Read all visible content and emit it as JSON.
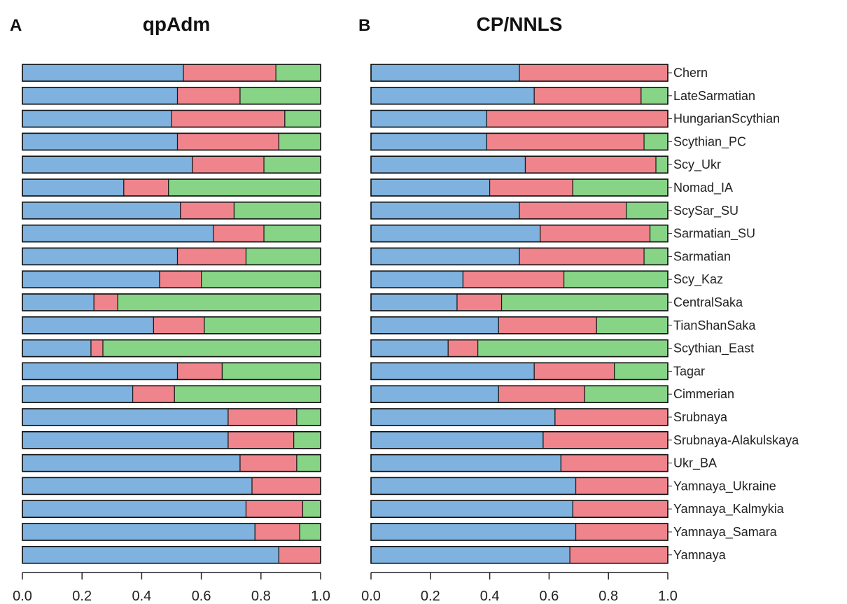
{
  "chart_data": [
    {
      "type": "bar",
      "stacked": true,
      "orientation": "horizontal",
      "panel": "A",
      "title": "qpAdm",
      "xlim": [
        0,
        1
      ],
      "xticks": [
        "0.0",
        "0.2",
        "0.4",
        "0.6",
        "0.8",
        "1.0"
      ],
      "colors": [
        "#7fb2de",
        "#f0848c",
        "#87d487"
      ],
      "categories": [
        "Chern",
        "LateSarmatian",
        "HungarianScythian",
        "Scythian_PC",
        "Scy_Ukr",
        "Nomad_IA",
        "ScySar_SU",
        "Sarmatian_SU",
        "Sarmatian",
        "Scy_Kaz",
        "CentralSaka",
        "TianShanSaka",
        "Scythian_East",
        "Tagar",
        "Cimmerian",
        "Srubnaya",
        "Srubnaya-Alakulskaya",
        "Ukr_BA",
        "Yamnaya_Ukraine",
        "Yamnaya_Kalmykia",
        "Yamnaya_Samara",
        "Yamnaya"
      ],
      "series": [
        {
          "values": [
            0.54,
            0.52,
            0.5,
            0.52,
            0.57,
            0.34,
            0.53,
            0.64,
            0.52,
            0.46,
            0.24,
            0.44,
            0.23,
            0.52,
            0.37,
            0.69,
            0.69,
            0.73,
            0.77,
            0.75,
            0.78,
            0.86
          ]
        },
        {
          "values": [
            0.31,
            0.21,
            0.38,
            0.34,
            0.24,
            0.15,
            0.18,
            0.17,
            0.23,
            0.14,
            0.08,
            0.17,
            0.04,
            0.15,
            0.14,
            0.23,
            0.22,
            0.19,
            0.23,
            0.19,
            0.15,
            0.14
          ]
        },
        {
          "values": [
            0.15,
            0.27,
            0.12,
            0.14,
            0.19,
            0.51,
            0.29,
            0.19,
            0.25,
            0.4,
            0.68,
            0.39,
            0.73,
            0.33,
            0.49,
            0.08,
            0.09,
            0.08,
            0.0,
            0.06,
            0.07,
            0.0
          ]
        }
      ]
    },
    {
      "type": "bar",
      "stacked": true,
      "orientation": "horizontal",
      "panel": "B",
      "title": "CP/NNLS",
      "xlim": [
        0,
        1
      ],
      "xticks": [
        "0.0",
        "0.2",
        "0.4",
        "0.6",
        "0.8",
        "1.0"
      ],
      "colors": [
        "#7fb2de",
        "#f0848c",
        "#87d487"
      ],
      "categories": [
        "Chern",
        "LateSarmatian",
        "HungarianScythian",
        "Scythian_PC",
        "Scy_Ukr",
        "Nomad_IA",
        "ScySar_SU",
        "Sarmatian_SU",
        "Sarmatian",
        "Scy_Kaz",
        "CentralSaka",
        "TianShanSaka",
        "Scythian_East",
        "Tagar",
        "Cimmerian",
        "Srubnaya",
        "Srubnaya-Alakulskaya",
        "Ukr_BA",
        "Yamnaya_Ukraine",
        "Yamnaya_Kalmykia",
        "Yamnaya_Samara",
        "Yamnaya"
      ],
      "series": [
        {
          "values": [
            0.5,
            0.55,
            0.39,
            0.39,
            0.52,
            0.4,
            0.5,
            0.57,
            0.5,
            0.31,
            0.29,
            0.43,
            0.26,
            0.55,
            0.43,
            0.62,
            0.58,
            0.64,
            0.69,
            0.68,
            0.69,
            0.67
          ]
        },
        {
          "values": [
            0.5,
            0.36,
            0.61,
            0.53,
            0.44,
            0.28,
            0.36,
            0.37,
            0.42,
            0.34,
            0.15,
            0.33,
            0.1,
            0.27,
            0.29,
            0.38,
            0.42,
            0.36,
            0.31,
            0.32,
            0.31,
            0.33
          ]
        },
        {
          "values": [
            0.0,
            0.09,
            0.0,
            0.08,
            0.04,
            0.32,
            0.14,
            0.06,
            0.08,
            0.35,
            0.56,
            0.24,
            0.64,
            0.18,
            0.28,
            0.0,
            0.0,
            0.0,
            0.0,
            0.0,
            0.0,
            0.0
          ]
        }
      ]
    }
  ]
}
